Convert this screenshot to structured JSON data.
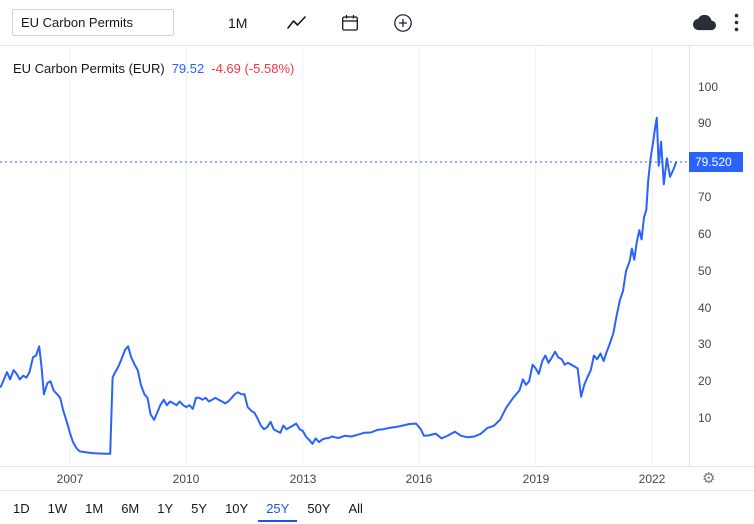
{
  "toolbar": {
    "symbol_value": "EU Carbon Permits",
    "interval": "1M"
  },
  "icons": {
    "chart_style": "line-style-icon",
    "calendar": "calendar-icon",
    "compare": "plus-circle-icon",
    "save": "cloud-icon",
    "menu": "kebab-menu-icon",
    "settings": "gear-icon"
  },
  "settings_glyph": "⚙",
  "legend": {
    "title": "EU Carbon Permits (EUR)",
    "price": "79.52",
    "change": "-4.69 (-5.58%)"
  },
  "price_axis": {
    "tag": "79.520"
  },
  "footer": {
    "ranges": [
      "1D",
      "1W",
      "1M",
      "6M",
      "1Y",
      "5Y",
      "10Y",
      "25Y",
      "50Y",
      "All"
    ],
    "selected": "25Y"
  },
  "colors": {
    "line": "#2962FF",
    "up": "#2962FF",
    "down": "#F23645",
    "text": "#131722",
    "muted": "#787B86",
    "border": "#E0E3EB",
    "grid": "#ECEEF1",
    "tag_bg": "#2962FF",
    "tag_text": "#FFFFFF"
  },
  "chart_data": {
    "type": "line",
    "title": "EU Carbon Permits (EUR)",
    "interval": "1M",
    "current_price": 79.52,
    "change": -4.69,
    "change_pct": -5.58,
    "xlim": [
      2005.2,
      2022.95
    ],
    "ylim": [
      -3,
      111
    ],
    "x_ticks": [
      2007,
      2010,
      2013,
      2016,
      2019,
      2022
    ],
    "y_ticks": [
      10,
      20,
      30,
      40,
      50,
      60,
      70,
      80,
      90,
      100
    ],
    "grid": "vertical-only",
    "legend_position": "top-left",
    "series": [
      {
        "name": "EU Carbon Permits (EUR)",
        "points": [
          [
            2005.22,
            18.5
          ],
          [
            2005.3,
            20.5
          ],
          [
            2005.38,
            22.5
          ],
          [
            2005.46,
            20.5
          ],
          [
            2005.55,
            23.0
          ],
          [
            2005.63,
            22.0
          ],
          [
            2005.71,
            20.5
          ],
          [
            2005.8,
            21.5
          ],
          [
            2005.88,
            21.0
          ],
          [
            2005.96,
            22.5
          ],
          [
            2006.05,
            26.5
          ],
          [
            2006.13,
            27.0
          ],
          [
            2006.21,
            29.5
          ],
          [
            2006.27,
            24.0
          ],
          [
            2006.33,
            16.5
          ],
          [
            2006.42,
            19.5
          ],
          [
            2006.5,
            20.0
          ],
          [
            2006.58,
            17.5
          ],
          [
            2006.67,
            16.5
          ],
          [
            2006.75,
            15.5
          ],
          [
            2006.83,
            12.0
          ],
          [
            2006.92,
            9.0
          ],
          [
            2007.0,
            6.0
          ],
          [
            2007.08,
            3.5
          ],
          [
            2007.17,
            1.8
          ],
          [
            2007.25,
            1.0
          ],
          [
            2007.42,
            0.7
          ],
          [
            2007.58,
            0.5
          ],
          [
            2007.75,
            0.4
          ],
          [
            2007.92,
            0.3
          ],
          [
            2008.04,
            0.3
          ],
          [
            2008.1,
            21.0
          ],
          [
            2008.17,
            22.5
          ],
          [
            2008.25,
            24.0
          ],
          [
            2008.33,
            26.0
          ],
          [
            2008.42,
            28.5
          ],
          [
            2008.5,
            29.5
          ],
          [
            2008.58,
            26.5
          ],
          [
            2008.67,
            24.5
          ],
          [
            2008.75,
            23.0
          ],
          [
            2008.83,
            19.0
          ],
          [
            2008.92,
            16.5
          ],
          [
            2009.0,
            15.5
          ],
          [
            2009.08,
            11.0
          ],
          [
            2009.17,
            9.5
          ],
          [
            2009.25,
            11.5
          ],
          [
            2009.33,
            13.5
          ],
          [
            2009.42,
            15.0
          ],
          [
            2009.5,
            13.5
          ],
          [
            2009.58,
            14.5
          ],
          [
            2009.67,
            14.0
          ],
          [
            2009.75,
            13.5
          ],
          [
            2009.83,
            14.5
          ],
          [
            2009.92,
            13.5
          ],
          [
            2010.0,
            13.0
          ],
          [
            2010.08,
            13.5
          ],
          [
            2010.17,
            12.5
          ],
          [
            2010.25,
            15.5
          ],
          [
            2010.33,
            15.5
          ],
          [
            2010.42,
            15.0
          ],
          [
            2010.5,
            15.5
          ],
          [
            2010.58,
            14.5
          ],
          [
            2010.67,
            15.0
          ],
          [
            2010.75,
            15.5
          ],
          [
            2010.83,
            15.0
          ],
          [
            2010.92,
            14.5
          ],
          [
            2011.0,
            14.0
          ],
          [
            2011.08,
            14.5
          ],
          [
            2011.17,
            15.5
          ],
          [
            2011.25,
            16.5
          ],
          [
            2011.33,
            17.0
          ],
          [
            2011.42,
            16.5
          ],
          [
            2011.5,
            16.5
          ],
          [
            2011.58,
            13.0
          ],
          [
            2011.67,
            12.0
          ],
          [
            2011.75,
            11.5
          ],
          [
            2011.83,
            10.0
          ],
          [
            2011.92,
            8.0
          ],
          [
            2012.0,
            7.0
          ],
          [
            2012.08,
            7.5
          ],
          [
            2012.17,
            9.0
          ],
          [
            2012.25,
            7.0
          ],
          [
            2012.33,
            6.5
          ],
          [
            2012.42,
            6.0
          ],
          [
            2012.5,
            8.0
          ],
          [
            2012.58,
            7.0
          ],
          [
            2012.67,
            7.5
          ],
          [
            2012.75,
            8.0
          ],
          [
            2012.83,
            8.5
          ],
          [
            2012.92,
            7.0
          ],
          [
            2013.0,
            6.5
          ],
          [
            2013.08,
            5.0
          ],
          [
            2013.17,
            4.0
          ],
          [
            2013.25,
            3.0
          ],
          [
            2013.33,
            4.5
          ],
          [
            2013.42,
            3.5
          ],
          [
            2013.5,
            4.2
          ],
          [
            2013.58,
            4.5
          ],
          [
            2013.67,
            4.6
          ],
          [
            2013.75,
            5.0
          ],
          [
            2013.83,
            4.8
          ],
          [
            2013.92,
            4.6
          ],
          [
            2014.08,
            5.2
          ],
          [
            2014.25,
            5.0
          ],
          [
            2014.42,
            5.5
          ],
          [
            2014.58,
            6.0
          ],
          [
            2014.75,
            6.1
          ],
          [
            2014.92,
            6.8
          ],
          [
            2015.08,
            7.0
          ],
          [
            2015.25,
            7.4
          ],
          [
            2015.42,
            7.6
          ],
          [
            2015.58,
            8.0
          ],
          [
            2015.75,
            8.4
          ],
          [
            2015.92,
            8.5
          ],
          [
            2016.04,
            7.0
          ],
          [
            2016.12,
            5.2
          ],
          [
            2016.25,
            5.3
          ],
          [
            2016.42,
            5.8
          ],
          [
            2016.58,
            4.5
          ],
          [
            2016.75,
            5.3
          ],
          [
            2016.92,
            6.3
          ],
          [
            2017.08,
            5.2
          ],
          [
            2017.25,
            4.8
          ],
          [
            2017.42,
            5.0
          ],
          [
            2017.58,
            5.7
          ],
          [
            2017.75,
            7.3
          ],
          [
            2017.92,
            7.9
          ],
          [
            2018.08,
            9.5
          ],
          [
            2018.25,
            13.0
          ],
          [
            2018.42,
            15.5
          ],
          [
            2018.58,
            17.5
          ],
          [
            2018.67,
            20.5
          ],
          [
            2018.75,
            19.0
          ],
          [
            2018.83,
            20.0
          ],
          [
            2018.92,
            24.5
          ],
          [
            2019.0,
            23.5
          ],
          [
            2019.08,
            22.0
          ],
          [
            2019.17,
            25.5
          ],
          [
            2019.25,
            27.0
          ],
          [
            2019.33,
            25.0
          ],
          [
            2019.42,
            26.5
          ],
          [
            2019.5,
            28.0
          ],
          [
            2019.58,
            26.5
          ],
          [
            2019.67,
            26.0
          ],
          [
            2019.75,
            24.5
          ],
          [
            2019.83,
            25.0
          ],
          [
            2019.92,
            24.5
          ],
          [
            2020.0,
            24.0
          ],
          [
            2020.08,
            23.5
          ],
          [
            2020.17,
            15.8
          ],
          [
            2020.25,
            19.0
          ],
          [
            2020.33,
            21.0
          ],
          [
            2020.42,
            23.0
          ],
          [
            2020.5,
            27.0
          ],
          [
            2020.58,
            26.0
          ],
          [
            2020.67,
            27.5
          ],
          [
            2020.75,
            25.5
          ],
          [
            2020.83,
            28.0
          ],
          [
            2020.92,
            30.5
          ],
          [
            2021.0,
            33.0
          ],
          [
            2021.08,
            37.5
          ],
          [
            2021.17,
            42.0
          ],
          [
            2021.25,
            44.5
          ],
          [
            2021.33,
            50.0
          ],
          [
            2021.42,
            52.5
          ],
          [
            2021.48,
            56.0
          ],
          [
            2021.54,
            53.0
          ],
          [
            2021.6,
            57.5
          ],
          [
            2021.67,
            61.0
          ],
          [
            2021.73,
            58.5
          ],
          [
            2021.79,
            64.5
          ],
          [
            2021.85,
            66.5
          ],
          [
            2021.9,
            74.5
          ],
          [
            2021.96,
            80.5
          ],
          [
            2022.02,
            84.5
          ],
          [
            2022.08,
            89.0
          ],
          [
            2022.12,
            91.5
          ],
          [
            2022.17,
            78.5
          ],
          [
            2022.23,
            85.0
          ],
          [
            2022.3,
            73.5
          ],
          [
            2022.38,
            80.5
          ],
          [
            2022.46,
            75.5
          ],
          [
            2022.55,
            77.5
          ],
          [
            2022.62,
            79.52
          ]
        ]
      }
    ]
  }
}
